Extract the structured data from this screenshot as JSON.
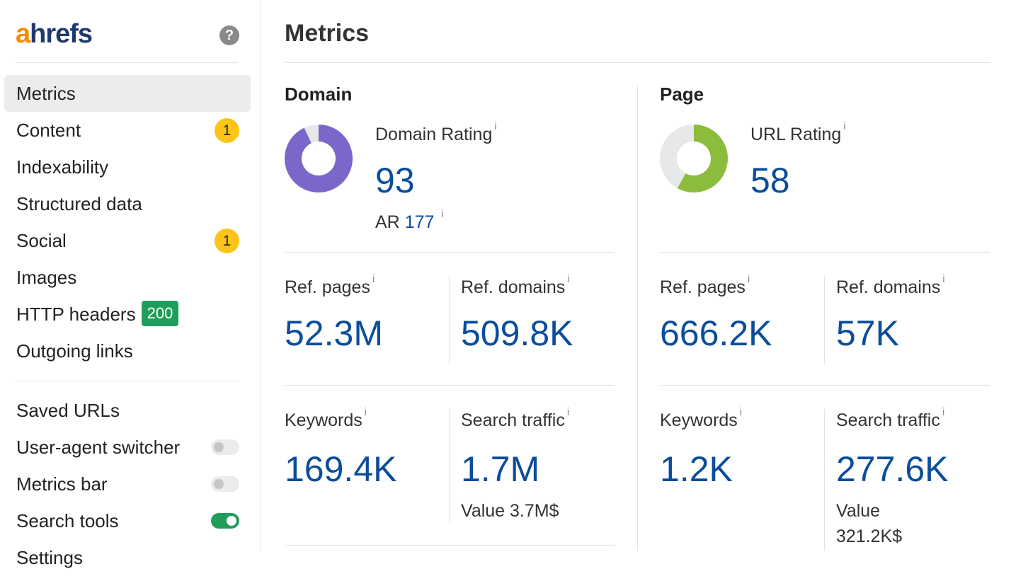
{
  "app": {
    "logo_a": "a",
    "logo_rest": "hrefs",
    "help_icon": "?"
  },
  "sidebar": {
    "items": [
      {
        "label": "Metrics",
        "active": true
      },
      {
        "label": "Content",
        "badge": "1"
      },
      {
        "label": "Indexability"
      },
      {
        "label": "Structured data"
      },
      {
        "label": "Social",
        "badge": "1"
      },
      {
        "label": "Images"
      },
      {
        "label": "HTTP headers",
        "badge": "200"
      },
      {
        "label": "Outgoing links"
      }
    ],
    "tools": [
      {
        "label": "Saved URLs"
      },
      {
        "label": "User-agent switcher",
        "toggle": false
      },
      {
        "label": "Metrics bar",
        "toggle": false
      },
      {
        "label": "Search tools",
        "toggle": true
      }
    ],
    "truncated_next": "Settings"
  },
  "main": {
    "title": "Metrics",
    "info_icon": "i",
    "domain": {
      "title": "Domain",
      "rating_label": "Domain Rating",
      "rating_value": "93",
      "rating_fraction": 0.93,
      "ar_label": "AR",
      "ar_value": "177",
      "ref_pages_label": "Ref. pages",
      "ref_pages_value": "52.3M",
      "ref_domains_label": "Ref. domains",
      "ref_domains_value": "509.8K",
      "keywords_label": "Keywords",
      "keywords_value": "169.4K",
      "traffic_label": "Search traffic",
      "traffic_value": "1.7M",
      "traffic_value_note": "Value 3.7M$"
    },
    "page": {
      "title": "Page",
      "rating_label": "URL Rating",
      "rating_value": "58",
      "rating_fraction": 0.58,
      "ref_pages_label": "Ref. pages",
      "ref_pages_value": "666.2K",
      "ref_domains_label": "Ref. domains",
      "ref_domains_value": "57K",
      "keywords_label": "Keywords",
      "keywords_value": "1.2K",
      "traffic_label": "Search traffic",
      "traffic_value": "277.6K",
      "traffic_value_note_1": "Value",
      "traffic_value_note_2": "321.2K$"
    }
  },
  "colors": {
    "accent_blue": "#0b4d9c",
    "domain_donut": "#7a67c9",
    "page_donut": "#8cbc3c",
    "donut_track": "#e6e8ea",
    "badge_yellow": "#fcc419",
    "badge_green": "#1e9e5a"
  }
}
